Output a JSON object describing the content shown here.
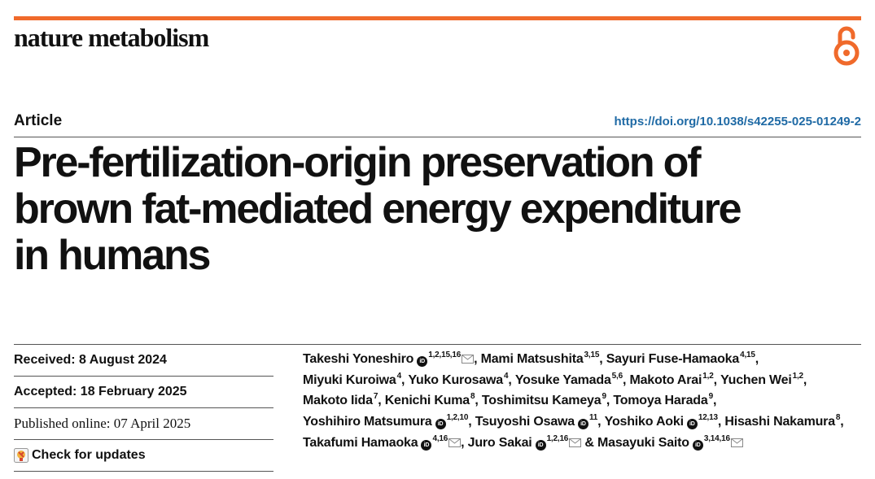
{
  "journal": {
    "name": "nature metabolism"
  },
  "header": {
    "article_type": "Article",
    "doi": "https://doi.org/10.1038/s42255-025-01249-2",
    "open_access_icon": "open-access-icon"
  },
  "title": {
    "line1": "Pre-fertilization-origin preservation of",
    "line2": "brown fat-mediated energy expenditure",
    "line3": "in humans"
  },
  "meta": {
    "received": "Received: 8 August 2024",
    "accepted": "Accepted: 18 February 2025",
    "published": "Published online: 07 April 2025",
    "check_updates": "Check for updates"
  },
  "authors": [
    {
      "name": "Takeshi Yoneshiro",
      "orcid": true,
      "sup": "1,2,15,16",
      "mail": true,
      "sep": ", "
    },
    {
      "name": "Mami Matsushita",
      "orcid": false,
      "sup": "3,15",
      "mail": false,
      "sep": ", "
    },
    {
      "name": "Sayuri Fuse-Hamaoka",
      "orcid": false,
      "sup": "4,15",
      "mail": false,
      "sep": ", "
    },
    {
      "name": "Miyuki Kuroiwa",
      "orcid": false,
      "sup": "4",
      "mail": false,
      "sep": ", "
    },
    {
      "name": "Yuko Kurosawa",
      "orcid": false,
      "sup": "4",
      "mail": false,
      "sep": ", "
    },
    {
      "name": "Yosuke Yamada",
      "orcid": false,
      "sup": "5,6",
      "mail": false,
      "sep": ", "
    },
    {
      "name": "Makoto Arai",
      "orcid": false,
      "sup": "1,2",
      "mail": false,
      "sep": ", "
    },
    {
      "name": "Yuchen Wei",
      "orcid": false,
      "sup": "1,2",
      "mail": false,
      "sep": ", "
    },
    {
      "name": "Makoto Iida",
      "orcid": false,
      "sup": "7",
      "mail": false,
      "sep": ", "
    },
    {
      "name": "Kenichi Kuma",
      "orcid": false,
      "sup": "8",
      "mail": false,
      "sep": ", "
    },
    {
      "name": "Toshimitsu Kameya",
      "orcid": false,
      "sup": "9",
      "mail": false,
      "sep": ", "
    },
    {
      "name": "Tomoya Harada",
      "orcid": false,
      "sup": "9",
      "mail": false,
      "sep": ", "
    },
    {
      "name": "Yoshihiro Matsumura",
      "orcid": true,
      "sup": "1,2,10",
      "mail": false,
      "sep": ", "
    },
    {
      "name": "Tsuyoshi Osawa",
      "orcid": true,
      "sup": "11",
      "mail": false,
      "sep": ", "
    },
    {
      "name": "Yoshiko Aoki",
      "orcid": true,
      "sup": "12,13",
      "mail": false,
      "sep": ", "
    },
    {
      "name": "Hisashi Nakamura",
      "orcid": false,
      "sup": "8",
      "mail": false,
      "sep": ", "
    },
    {
      "name": "Takafumi Hamaoka",
      "orcid": true,
      "sup": "4,16",
      "mail": true,
      "sep": ", "
    },
    {
      "name": "Juro Sakai",
      "orcid": true,
      "sup": "1,2,16",
      "mail": true,
      "sep": " & "
    },
    {
      "name": "Masayuki Saito",
      "orcid": true,
      "sup": "3,14,16",
      "mail": true,
      "sep": ""
    }
  ],
  "colors": {
    "accent_bar": "#f06a2b",
    "doi_link": "#1f6aa5"
  }
}
